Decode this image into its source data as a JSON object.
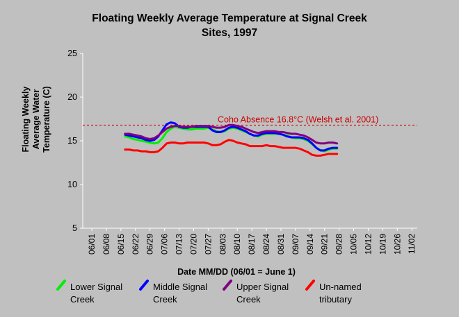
{
  "chart_data": {
    "type": "line",
    "title_lines": [
      "Floating Weekly Average Temperature at Signal Creek",
      "Sites, 1997"
    ],
    "ylabel_lines": [
      "Floating Weekly",
      "Average Water",
      "Temperature (C)"
    ],
    "xlabel": "Date MM/DD (06/01 = June 1)",
    "categories": [
      "06/01",
      "06/08",
      "06/15",
      "06/22",
      "06/29",
      "07/06",
      "07/13",
      "07/20",
      "07/27",
      "08/03",
      "08/10",
      "08/17",
      "08/24",
      "08/31",
      "09/07",
      "09/14",
      "09/21",
      "09/28",
      "10/05",
      "10/12",
      "10/19",
      "10/26",
      "11/02"
    ],
    "yticks": [
      5,
      10,
      15,
      20,
      25
    ],
    "ylim": [
      5,
      25
    ],
    "reference_line": {
      "value": 16.8,
      "label": "Coho Absence 16.8°C (Welsh et al. 2001)",
      "color": "#cc0000"
    },
    "series": [
      {
        "name": "Lower Signal Creek",
        "color": "#00ee00",
        "x": [
          16,
          18,
          20,
          22,
          24,
          26,
          28,
          30,
          32,
          34,
          36,
          38,
          40,
          42,
          44,
          46,
          48,
          50,
          52,
          54,
          56,
          58,
          60,
          62,
          64,
          66,
          68,
          70,
          72,
          74,
          76,
          78,
          80,
          82,
          84,
          86,
          88,
          90,
          92,
          94,
          96,
          98,
          100,
          102,
          104,
          106,
          108,
          110,
          112,
          114,
          116,
          118
        ],
        "values": [
          15.5,
          15.4,
          15.2,
          15.1,
          15.0,
          14.9,
          14.8,
          14.7,
          14.8,
          15.3,
          16.0,
          16.4,
          16.6,
          16.5,
          16.4,
          16.3,
          16.3,
          16.4,
          16.4,
          16.4,
          16.5,
          16.3,
          16.1,
          16.0,
          16.1,
          16.4,
          16.5,
          16.4,
          16.2,
          16.0,
          15.8,
          15.6,
          15.5,
          15.7,
          15.8,
          15.8,
          15.8,
          15.8,
          15.7,
          15.6,
          15.4,
          15.3,
          15.3,
          15.2,
          15.0,
          14.6,
          14.2,
          13.9,
          13.8,
          14.0,
          14.1,
          14.1
        ]
      },
      {
        "name": "Middle Signal Creek",
        "color": "#0000ff",
        "x": [
          16,
          18,
          20,
          22,
          24,
          26,
          28,
          30,
          32,
          34,
          36,
          38,
          40,
          42,
          44,
          46,
          48,
          50,
          52,
          54,
          56,
          58,
          60,
          62,
          64,
          66,
          68,
          70,
          72,
          74,
          76,
          78,
          80,
          82,
          84,
          86,
          88,
          90,
          92,
          94,
          96,
          98,
          100,
          102,
          104,
          106,
          108,
          110,
          112,
          114,
          116,
          118
        ],
        "values": [
          15.7,
          15.6,
          15.5,
          15.4,
          15.3,
          15.1,
          15.0,
          15.1,
          15.5,
          16.2,
          16.9,
          17.1,
          17.0,
          16.6,
          16.5,
          16.5,
          16.6,
          16.6,
          16.6,
          16.6,
          16.6,
          16.2,
          16.0,
          16.0,
          16.2,
          16.5,
          16.6,
          16.5,
          16.3,
          16.1,
          15.8,
          15.6,
          15.6,
          15.8,
          15.9,
          15.9,
          15.9,
          15.8,
          15.7,
          15.5,
          15.4,
          15.4,
          15.4,
          15.3,
          15.1,
          14.7,
          14.2,
          13.9,
          13.9,
          14.1,
          14.2,
          14.2
        ]
      },
      {
        "name": "Upper Signal Creek",
        "color": "#800080",
        "x": [
          16,
          18,
          20,
          22,
          24,
          26,
          28,
          30,
          32,
          34,
          36,
          38,
          40,
          42,
          44,
          46,
          48,
          50,
          52,
          54,
          56,
          58,
          60,
          62,
          64,
          66,
          68,
          70,
          72,
          74,
          76,
          78,
          80,
          82,
          84,
          86,
          88,
          90,
          92,
          94,
          96,
          98,
          100,
          102,
          104,
          106,
          108,
          110,
          112,
          114,
          116,
          118
        ],
        "values": [
          15.8,
          15.8,
          15.7,
          15.6,
          15.5,
          15.3,
          15.2,
          15.3,
          15.6,
          16.0,
          16.4,
          16.6,
          16.7,
          16.7,
          16.6,
          16.6,
          16.6,
          16.7,
          16.7,
          16.7,
          16.7,
          16.6,
          16.5,
          16.5,
          16.6,
          16.8,
          16.8,
          16.7,
          16.6,
          16.4,
          16.2,
          16.0,
          15.9,
          16.0,
          16.1,
          16.1,
          16.1,
          16.0,
          16.0,
          15.9,
          15.8,
          15.8,
          15.7,
          15.6,
          15.4,
          15.1,
          14.8,
          14.7,
          14.7,
          14.8,
          14.8,
          14.7
        ]
      },
      {
        "name": "Un-named tributary",
        "color": "#ff0000",
        "x": [
          16,
          18,
          20,
          22,
          24,
          26,
          28,
          30,
          32,
          34,
          36,
          38,
          40,
          42,
          44,
          46,
          48,
          50,
          52,
          54,
          56,
          58,
          60,
          62,
          64,
          66,
          68,
          70,
          72,
          74,
          76,
          78,
          80,
          82,
          84,
          86,
          88,
          90,
          92,
          94,
          96,
          98,
          100,
          102,
          104,
          106,
          108,
          110,
          112,
          114,
          116,
          118
        ],
        "values": [
          14.0,
          14.0,
          13.9,
          13.9,
          13.8,
          13.8,
          13.7,
          13.7,
          13.8,
          14.2,
          14.7,
          14.8,
          14.8,
          14.7,
          14.7,
          14.8,
          14.8,
          14.8,
          14.8,
          14.8,
          14.7,
          14.5,
          14.5,
          14.6,
          14.9,
          15.1,
          15.0,
          14.8,
          14.7,
          14.6,
          14.4,
          14.4,
          14.4,
          14.4,
          14.5,
          14.4,
          14.4,
          14.3,
          14.2,
          14.2,
          14.2,
          14.2,
          14.1,
          13.9,
          13.7,
          13.4,
          13.3,
          13.3,
          13.4,
          13.5,
          13.5,
          13.5
        ]
      }
    ],
    "legend": [
      {
        "line1": "Lower Signal",
        "line2": "Creek"
      },
      {
        "line1": "Middle Signal",
        "line2": "Creek"
      },
      {
        "line1": "Upper Signal",
        "line2": "Creek"
      },
      {
        "line1": "Un-named",
        "line2": "tributary"
      }
    ],
    "grid": false,
    "legend_placement": "bottom",
    "colors": {
      "background": "#c0c0c0",
      "axis": "#ffffff",
      "text": "#000000"
    }
  }
}
